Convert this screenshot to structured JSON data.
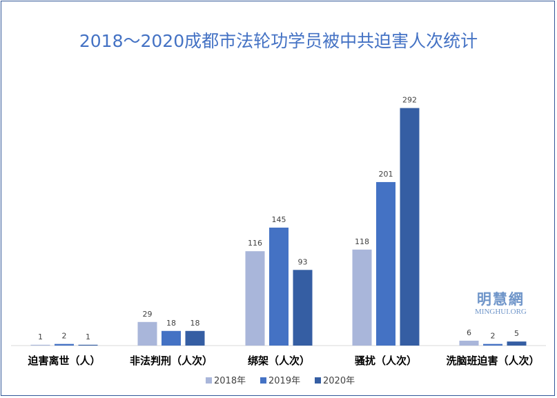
{
  "chart_data": {
    "type": "bar",
    "title": "2018～2020成都市法轮功学员被中共迫害人次统计",
    "categories": [
      "迫害离世（人）",
      "非法判刑（人次）",
      "绑架（人次）",
      "骚扰（人次）",
      "洗脑班迫害（人次）"
    ],
    "series": [
      {
        "name": "2018年",
        "color": "#a9b6da",
        "values": [
          1,
          29,
          116,
          118,
          6
        ]
      },
      {
        "name": "2019年",
        "color": "#4472c4",
        "values": [
          2,
          18,
          145,
          201,
          2
        ]
      },
      {
        "name": "2020年",
        "color": "#355ea3",
        "values": [
          1,
          18,
          93,
          292,
          5
        ]
      }
    ],
    "ylim": [
      0,
      340
    ],
    "grid": false,
    "legend": "bottom"
  },
  "watermark": {
    "cn": "明慧網",
    "en": "MINGHUI.ORG"
  }
}
